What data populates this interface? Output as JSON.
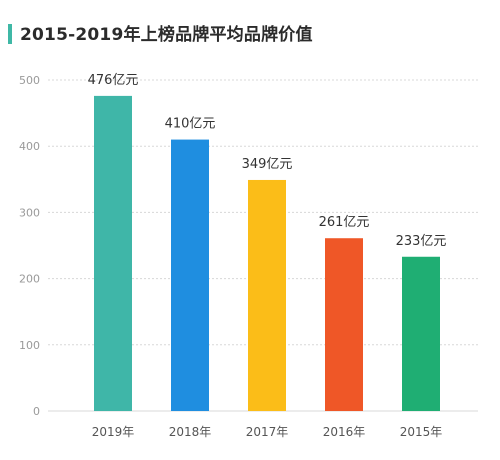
{
  "chart_data": {
    "type": "bar",
    "title": "2015-2019年上榜品牌平均品牌价值",
    "categories": [
      "2019年",
      "2018年",
      "2017年",
      "2016年",
      "2015年"
    ],
    "values": [
      476,
      410,
      349,
      261,
      233
    ],
    "data_labels": [
      "476亿元",
      "410亿元",
      "349亿元",
      "261亿元",
      "233亿元"
    ],
    "colors": [
      "#3fb6a8",
      "#1f8ee0",
      "#fbbd18",
      "#ef5727",
      "#1fae73"
    ],
    "ylim": [
      0,
      500
    ],
    "yticks": [
      0,
      100,
      200,
      300,
      400,
      500
    ],
    "xlabel": "",
    "ylabel": "",
    "grid": true,
    "accent_color": "#3fb8a6"
  }
}
